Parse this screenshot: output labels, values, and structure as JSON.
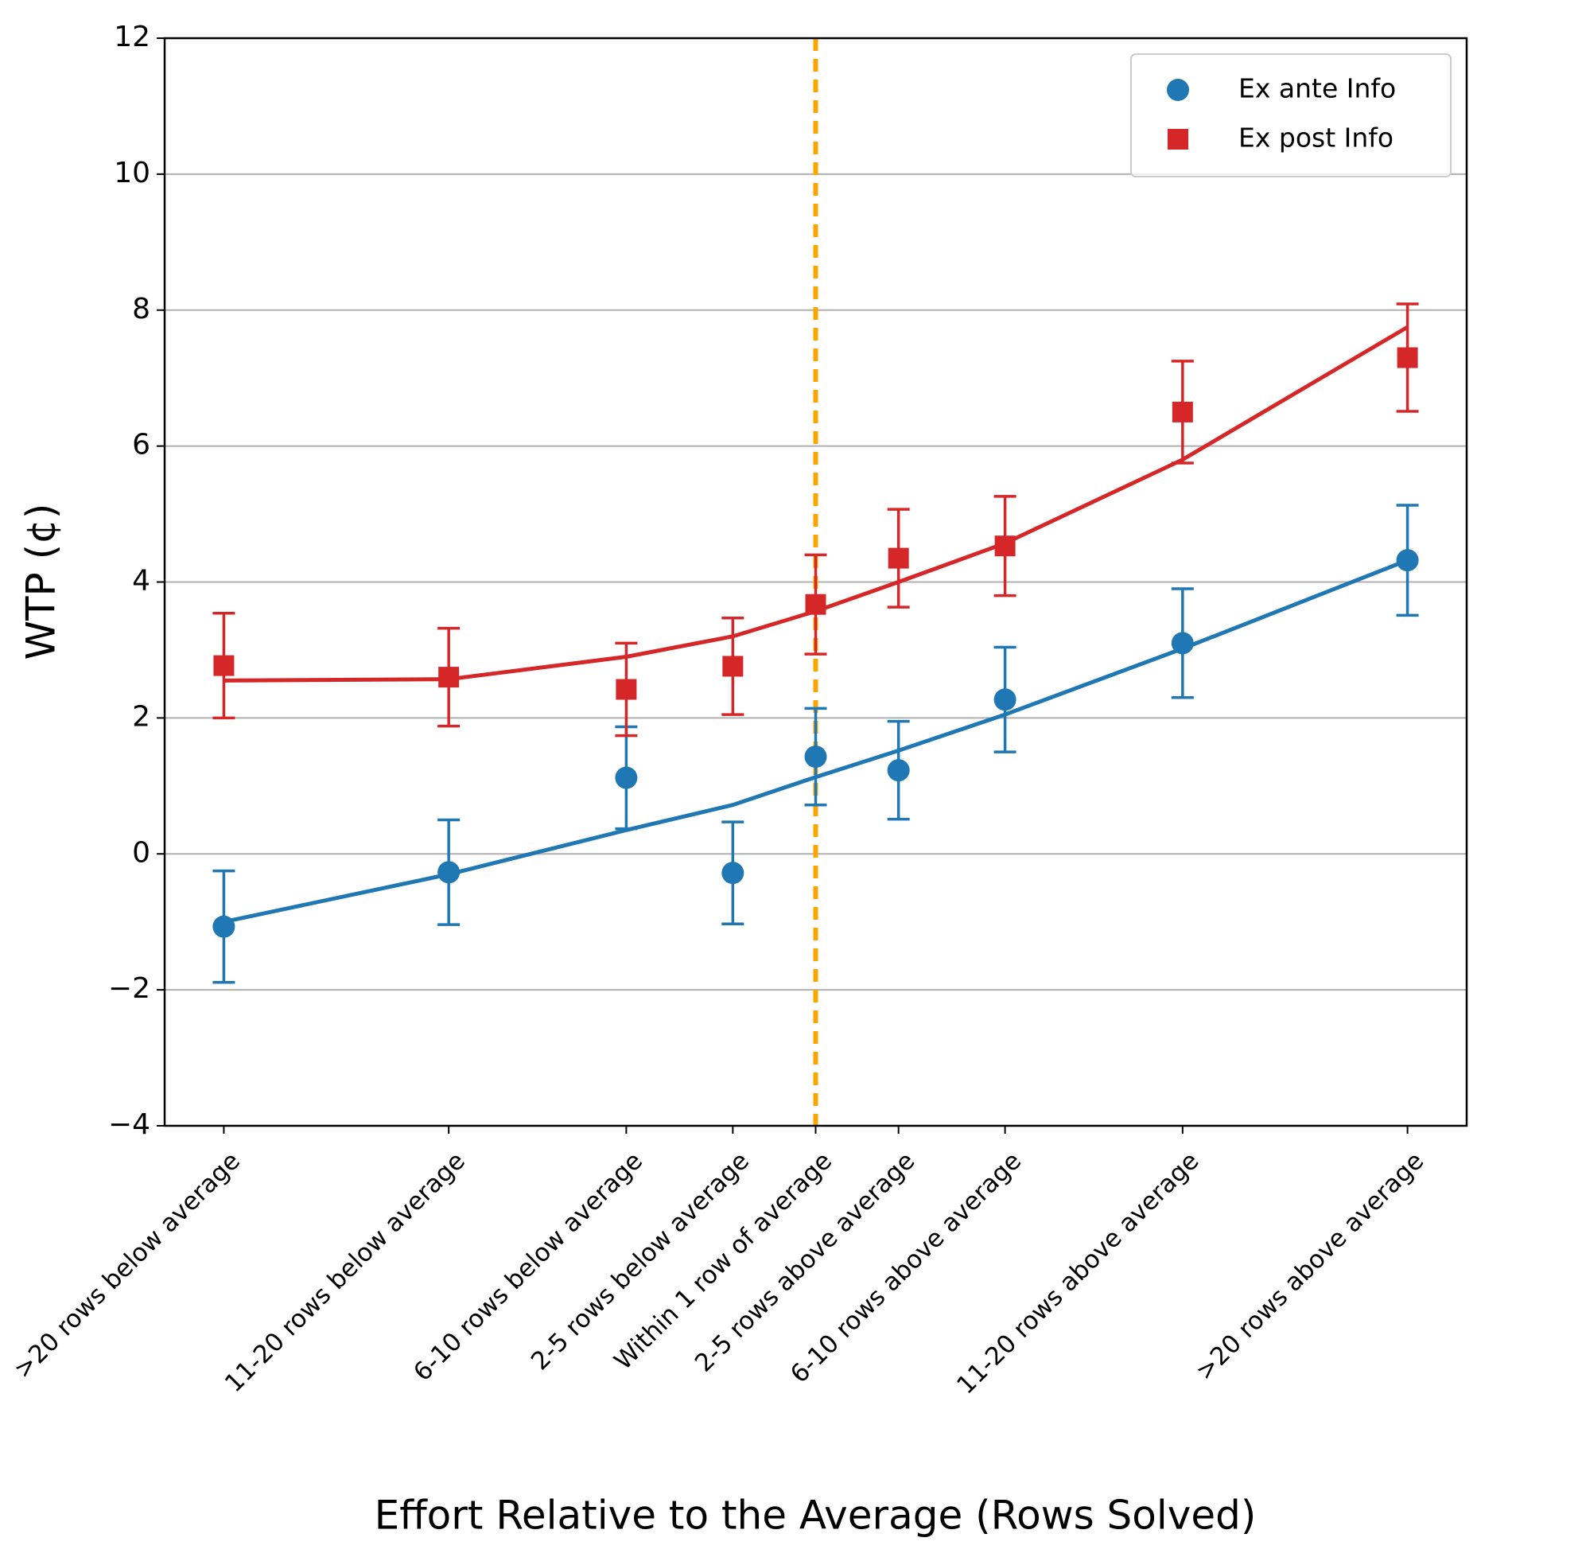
{
  "chart_data": {
    "type": "errorbar",
    "xlabel": "Effort Relative to the Average (Rows Solved)",
    "ylabel": "WTP (¢)",
    "x": [
      -25,
      -15.5,
      -8,
      -3.5,
      0,
      3.5,
      8,
      15.5,
      25
    ],
    "xlim": [
      -27.5,
      27.5
    ],
    "xticks": [
      {
        "value": -25,
        "label": ">20 rows below average"
      },
      {
        "value": -15.5,
        "label": "11-20 rows below average"
      },
      {
        "value": -8,
        "label": "6-10 rows below average"
      },
      {
        "value": -3.5,
        "label": "2-5 rows below average"
      },
      {
        "value": 0,
        "label": "Within 1 row of average"
      },
      {
        "value": 3.5,
        "label": "2-5 rows above average"
      },
      {
        "value": 8,
        "label": "6-10 rows above average"
      },
      {
        "value": 15.5,
        "label": "11-20 rows above average"
      },
      {
        "value": 25,
        "label": ">20 rows above average"
      }
    ],
    "ylim": [
      -4,
      12
    ],
    "yticks": [
      {
        "value": -4,
        "label": "−4"
      },
      {
        "value": -2,
        "label": "−2"
      },
      0,
      2,
      4,
      6,
      8,
      10,
      12
    ],
    "grid": "y",
    "vline": {
      "x": 0,
      "color": "#ffa500"
    },
    "legend": "upper right",
    "series": [
      {
        "name": "Ex ante Info",
        "color": "#1f77b4",
        "marker": "circle",
        "values": [
          -1.07,
          -0.27,
          1.12,
          -0.28,
          1.43,
          1.23,
          2.27,
          3.1,
          4.32
        ],
        "errors": [
          0.82,
          0.77,
          0.75,
          0.75,
          0.71,
          0.72,
          0.77,
          0.8,
          0.81
        ],
        "fit": [
          -1.0,
          -0.3,
          0.35,
          0.72,
          1.13,
          1.52,
          2.05,
          3.02,
          4.32
        ]
      },
      {
        "name": "Ex post Info",
        "color": "#d62728",
        "marker": "square",
        "values": [
          2.77,
          2.6,
          2.42,
          2.76,
          3.67,
          4.35,
          4.53,
          6.5,
          7.3
        ],
        "errors": [
          0.77,
          0.72,
          0.68,
          0.71,
          0.73,
          0.72,
          0.73,
          0.75,
          0.79
        ],
        "fit": [
          2.55,
          2.57,
          2.9,
          3.2,
          3.57,
          4.0,
          4.57,
          5.8,
          7.75
        ]
      }
    ]
  }
}
